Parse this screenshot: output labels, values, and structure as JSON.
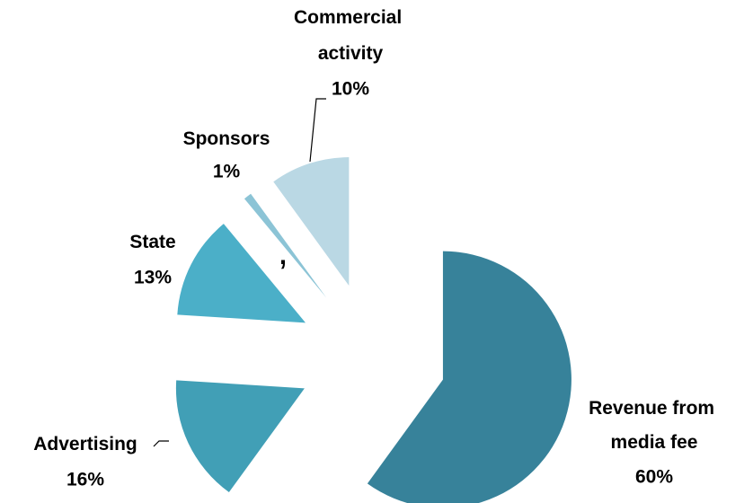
{
  "chart_data": {
    "type": "pie",
    "categories": [
      "Revenue from media fee",
      "Advertising",
      "State",
      "Sponsors",
      "Commercial activity"
    ],
    "values": [
      60,
      16,
      13,
      1,
      10
    ],
    "value_labels": [
      "60%",
      "16%",
      "13%",
      "1%",
      "10%"
    ],
    "colors": [
      "#37829a",
      "#419fb6",
      "#4bafc8",
      "#8cc4d6",
      "#bad8e4"
    ],
    "exploded": true,
    "annotation": ","
  }
}
